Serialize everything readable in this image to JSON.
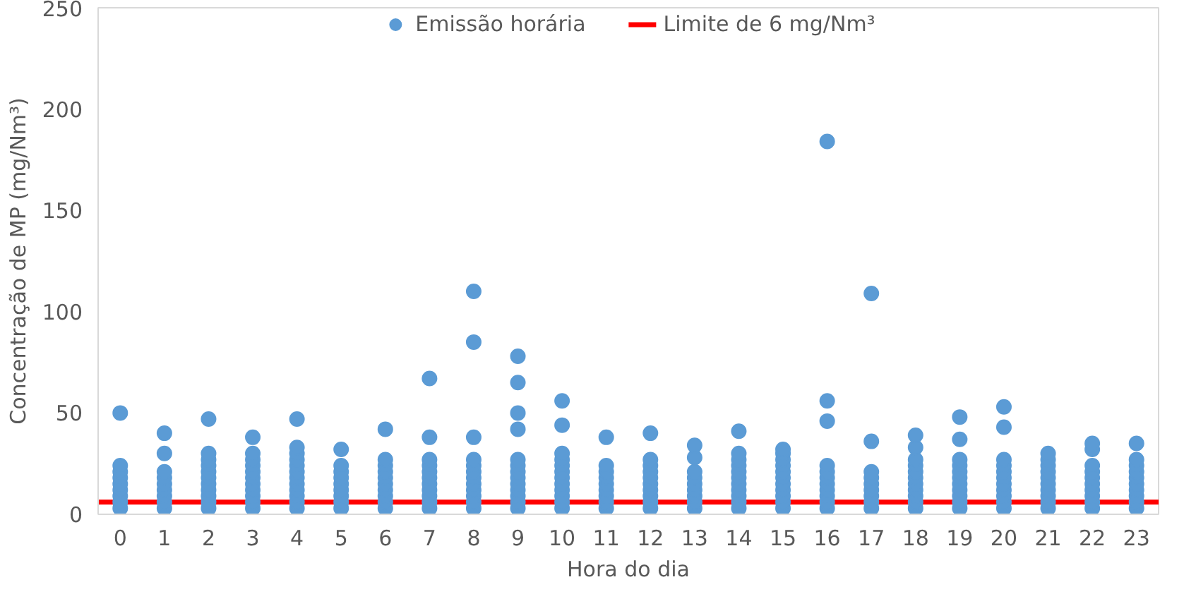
{
  "chart_data": {
    "type": "scatter",
    "xlabel": "Hora do dia",
    "ylabel": "Concentração de MP (mg/Nm³)",
    "xlim": [
      -0.5,
      23.5
    ],
    "ylim": [
      0,
      250
    ],
    "xticks": [
      0,
      1,
      2,
      3,
      4,
      5,
      6,
      7,
      8,
      9,
      10,
      11,
      12,
      13,
      14,
      15,
      16,
      17,
      18,
      19,
      20,
      21,
      22,
      23
    ],
    "yticks": [
      0,
      50,
      100,
      150,
      200,
      250
    ],
    "grid": false,
    "legend": "top",
    "marker": "circle",
    "series": [
      {
        "name": "Emissão horária",
        "color": "#5b9bd5",
        "x": [
          0,
          0,
          0,
          0,
          0,
          0,
          0,
          0,
          0,
          1,
          1,
          1,
          1,
          1,
          1,
          1,
          1,
          1,
          2,
          2,
          2,
          2,
          2,
          2,
          2,
          2,
          2,
          2,
          2,
          3,
          3,
          3,
          3,
          3,
          3,
          3,
          3,
          3,
          3,
          3,
          4,
          4,
          4,
          4,
          4,
          4,
          4,
          4,
          4,
          4,
          4,
          4,
          5,
          5,
          5,
          5,
          5,
          5,
          5,
          5,
          5,
          6,
          6,
          6,
          6,
          6,
          6,
          6,
          6,
          6,
          6,
          7,
          7,
          7,
          7,
          7,
          7,
          7,
          7,
          7,
          7,
          7,
          8,
          8,
          8,
          8,
          8,
          8,
          8,
          8,
          8,
          8,
          8,
          8,
          9,
          9,
          9,
          9,
          9,
          9,
          9,
          9,
          9,
          9,
          9,
          9,
          9,
          10,
          10,
          10,
          10,
          10,
          10,
          10,
          10,
          10,
          10,
          10,
          10,
          11,
          11,
          11,
          11,
          11,
          11,
          11,
          11,
          11,
          12,
          12,
          12,
          12,
          12,
          12,
          12,
          12,
          12,
          12,
          13,
          13,
          13,
          13,
          13,
          13,
          13,
          13,
          13,
          14,
          14,
          14,
          14,
          14,
          14,
          14,
          14,
          14,
          14,
          14,
          15,
          15,
          15,
          15,
          15,
          15,
          15,
          15,
          15,
          15,
          15,
          16,
          16,
          16,
          16,
          16,
          16,
          16,
          16,
          16,
          16,
          16,
          17,
          17,
          17,
          17,
          17,
          17,
          17,
          17,
          17,
          18,
          18,
          18,
          18,
          18,
          18,
          18,
          18,
          18,
          18,
          18,
          19,
          19,
          19,
          19,
          19,
          19,
          19,
          19,
          19,
          19,
          19,
          20,
          20,
          20,
          20,
          20,
          20,
          20,
          20,
          20,
          20,
          20,
          21,
          21,
          21,
          21,
          21,
          21,
          21,
          21,
          21,
          21,
          22,
          22,
          22,
          22,
          22,
          22,
          22,
          22,
          22,
          22,
          23,
          23,
          23,
          23,
          23,
          23,
          23,
          23,
          23,
          23
        ],
        "values": [
          3,
          6,
          9,
          12,
          15,
          18,
          21,
          24,
          50,
          3,
          6,
          9,
          12,
          15,
          18,
          21,
          30,
          40,
          3,
          6,
          9,
          12,
          15,
          18,
          21,
          24,
          27,
          30,
          47,
          3,
          6,
          9,
          12,
          15,
          18,
          21,
          24,
          27,
          30,
          38,
          3,
          6,
          9,
          12,
          15,
          18,
          21,
          24,
          27,
          30,
          33,
          47,
          3,
          6,
          9,
          12,
          15,
          18,
          21,
          24,
          32,
          3,
          6,
          9,
          12,
          15,
          18,
          21,
          24,
          27,
          42,
          3,
          6,
          9,
          12,
          15,
          18,
          21,
          24,
          27,
          38,
          67,
          3,
          6,
          9,
          12,
          15,
          18,
          21,
          24,
          27,
          38,
          85,
          110,
          3,
          6,
          9,
          12,
          15,
          18,
          21,
          24,
          27,
          42,
          50,
          65,
          78,
          3,
          6,
          9,
          12,
          15,
          18,
          21,
          24,
          27,
          30,
          44,
          56,
          3,
          6,
          9,
          12,
          15,
          18,
          21,
          24,
          38,
          3,
          6,
          9,
          12,
          15,
          18,
          21,
          24,
          27,
          40,
          3,
          6,
          9,
          12,
          15,
          18,
          21,
          28,
          34,
          3,
          6,
          9,
          12,
          15,
          18,
          21,
          24,
          27,
          30,
          41,
          3,
          6,
          9,
          12,
          15,
          18,
          21,
          24,
          27,
          30,
          32,
          3,
          6,
          9,
          12,
          15,
          18,
          21,
          24,
          46,
          56,
          184,
          3,
          6,
          9,
          12,
          15,
          18,
          21,
          36,
          109,
          3,
          6,
          9,
          12,
          15,
          18,
          21,
          24,
          27,
          33,
          39,
          3,
          6,
          9,
          12,
          15,
          18,
          21,
          24,
          27,
          37,
          48,
          3,
          6,
          9,
          12,
          15,
          18,
          21,
          24,
          27,
          43,
          53,
          3,
          6,
          9,
          12,
          15,
          18,
          21,
          24,
          27,
          30,
          3,
          6,
          9,
          12,
          15,
          18,
          21,
          24,
          32,
          35,
          3,
          6,
          9,
          12,
          15,
          18,
          21,
          24,
          27,
          35
        ]
      }
    ],
    "ref_lines": [
      {
        "axis": "y",
        "value": 6,
        "label": "Limite de 6 mg/Nm³",
        "color": "#ff0000",
        "line_style": "solid"
      }
    ]
  }
}
